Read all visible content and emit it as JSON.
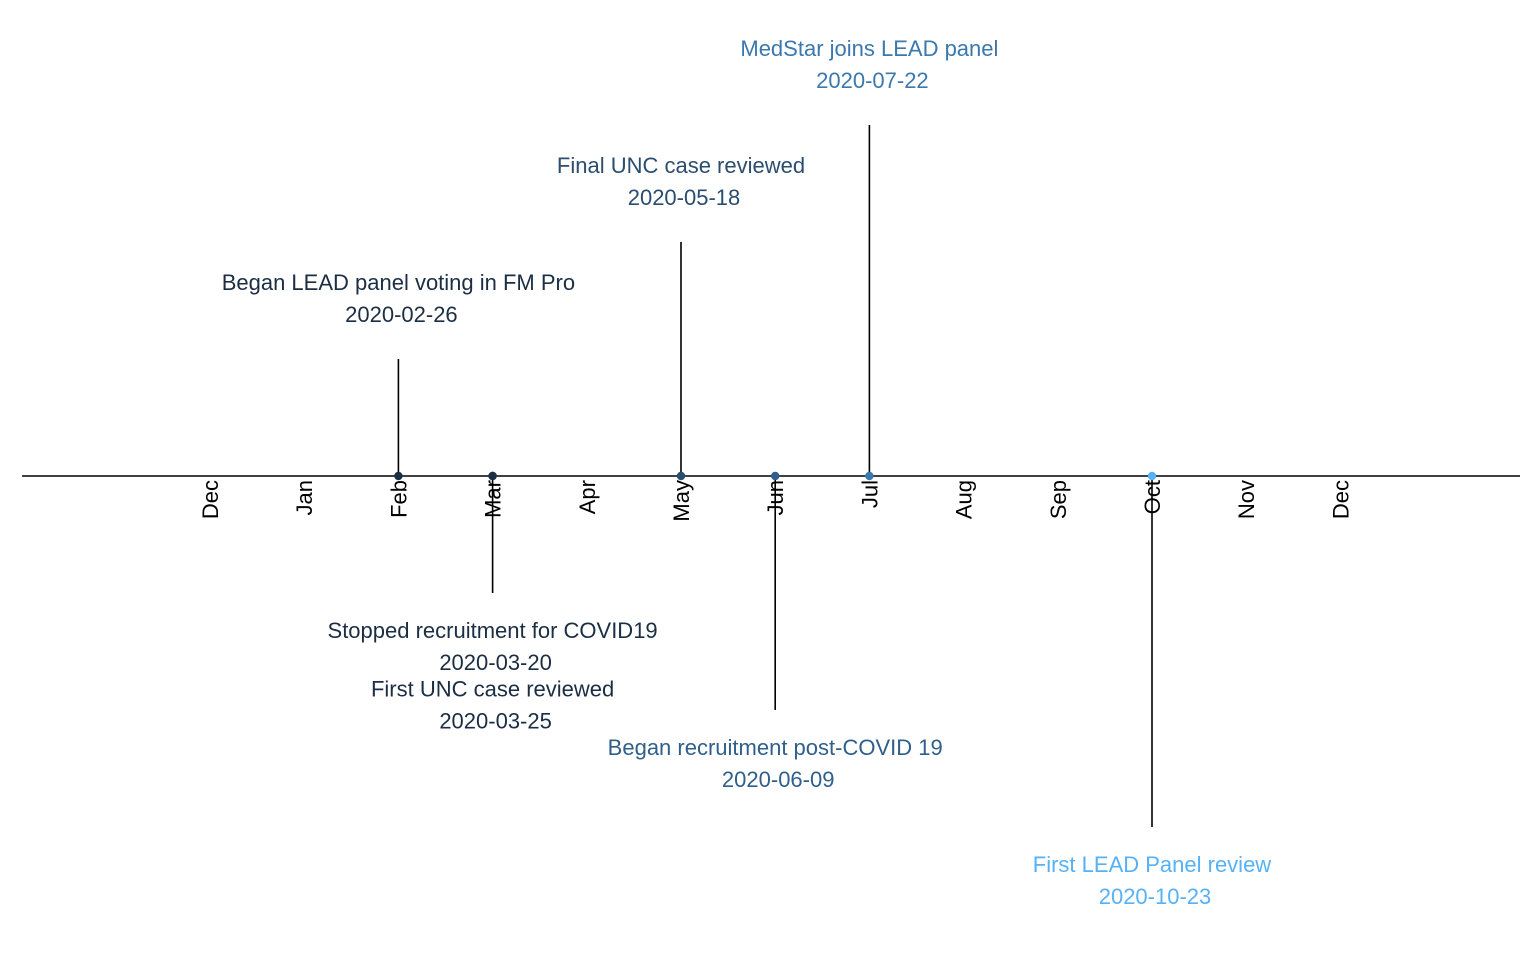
{
  "chart_data": {
    "type": "timeline",
    "title": "",
    "xlabel": "",
    "ylabel": "",
    "grid": false,
    "axis_months": [
      "Dec",
      "Jan",
      "Feb",
      "Mar",
      "Apr",
      "May",
      "Jun",
      "Jul",
      "Aug",
      "Sep",
      "Oct",
      "Nov",
      "Dec"
    ],
    "events": [
      {
        "label": "Began LEAD panel voting in FM Pro",
        "date": "2020-02-26",
        "month": "Feb",
        "side": "above",
        "level": 1,
        "color": "#1b2e44"
      },
      {
        "label": "Stopped recruitment for COVID19",
        "date": "2020-03-20",
        "month": "Mar",
        "side": "below",
        "level": 1,
        "color": "#1b2e44"
      },
      {
        "label": "First UNC case reviewed",
        "date": "2020-03-25",
        "month": "Mar",
        "side": "below",
        "level": 1.5,
        "color": "#1b2e44"
      },
      {
        "label": "Final UNC case reviewed",
        "date": "2020-05-18",
        "month": "May",
        "side": "above",
        "level": 2,
        "color": "#2b4d6e"
      },
      {
        "label": "Began recruitment post-COVID 19",
        "date": "2020-06-09",
        "month": "Jun",
        "side": "below",
        "level": 2,
        "color": "#2f5f8a"
      },
      {
        "label": "MedStar joins LEAD panel",
        "date": "2020-07-22",
        "month": "Jul",
        "side": "above",
        "level": 3,
        "color": "#3b78ad"
      },
      {
        "label": "First LEAD Panel review",
        "date": "2020-10-23",
        "month": "Oct",
        "side": "below",
        "level": 3,
        "color": "#56b1f7"
      }
    ]
  }
}
